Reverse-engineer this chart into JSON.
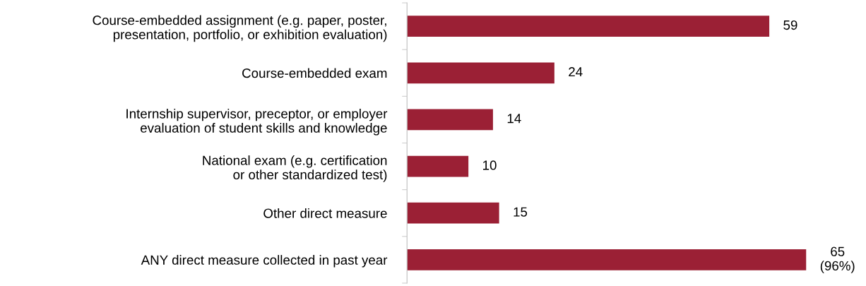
{
  "chart_data": {
    "type": "bar",
    "orientation": "horizontal",
    "categories": [
      "Course-embedded assignment (e.g. paper, poster,\npresentation, portfolio, or exhibition evaluation)",
      "Course-embedded exam",
      "Internship supervisor, preceptor, or employer\nevaluation of student skills and knowledge",
      "National exam (e.g. certification\nor other standardized test)",
      "Other direct measure",
      "ANY direct measure collected in past year"
    ],
    "values": [
      59,
      24,
      14,
      10,
      15,
      65
    ],
    "value_labels": [
      "59",
      "24",
      "14",
      "10",
      "15",
      "65\n(96%)"
    ],
    "color": "#9b2035"
  }
}
